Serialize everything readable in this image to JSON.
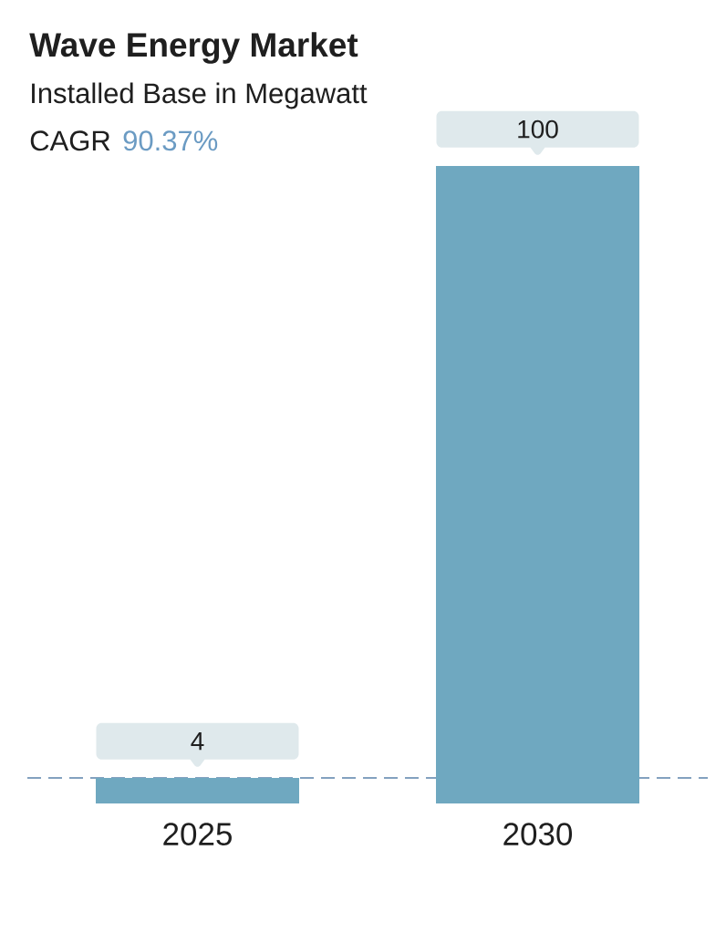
{
  "chart_data": {
    "type": "bar",
    "title": "Wave Energy Market",
    "subtitle": "Installed Base in Megawatt",
    "annotations": [
      "CAGR",
      "90.37%"
    ],
    "categories": [
      "2025",
      "2030"
    ],
    "values": [
      4,
      100
    ],
    "color": "#6fa8c0",
    "data_labels": true,
    "ref_lines": [
      {
        "axis": "y",
        "value": 4,
        "color": "#5b82aa",
        "line_style": "dashed"
      }
    ]
  }
}
